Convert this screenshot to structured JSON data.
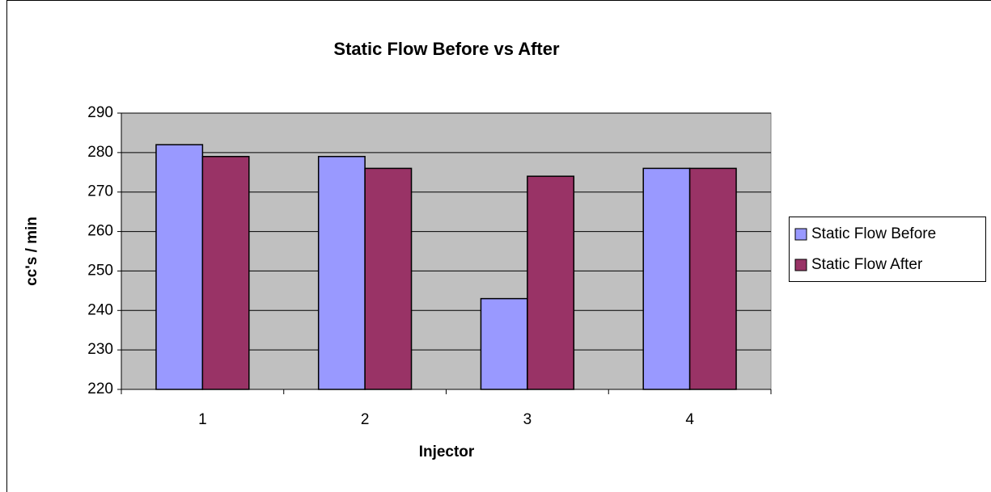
{
  "chart_data": {
    "type": "bar",
    "title": "Static Flow Before vs After",
    "x_label": "Injector",
    "y_label": "cc's / min",
    "categories": [
      "1",
      "2",
      "3",
      "4"
    ],
    "series": [
      {
        "name": "Static Flow Before",
        "color": "#9999ff",
        "values": [
          282,
          279,
          243,
          276
        ]
      },
      {
        "name": "Static Flow After",
        "color": "#993366",
        "values": [
          279,
          276,
          274,
          276
        ]
      }
    ],
    "ylim": [
      220,
      290
    ],
    "yticks": [
      220,
      230,
      240,
      250,
      260,
      270,
      280,
      290
    ],
    "grid": true,
    "legend": "right"
  }
}
